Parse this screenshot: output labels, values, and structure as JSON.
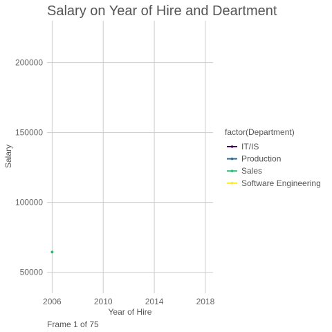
{
  "chart_data": {
    "type": "line",
    "title": "Salary on Year of Hire and Deartment",
    "xlabel": "Year of Hire",
    "ylabel": "Salary",
    "xlim": [
      2005.6,
      2018.6
    ],
    "ylim": [
      35000,
      230000
    ],
    "x_ticks": [
      2006,
      2010,
      2014,
      2018
    ],
    "y_ticks": [
      50000,
      100000,
      150000,
      200000
    ],
    "grid": true,
    "legend": {
      "title": "factor(Department)",
      "placement": "right",
      "entries": [
        {
          "name": "IT/IS",
          "color": "#440154"
        },
        {
          "name": "Production",
          "color": "#31688E"
        },
        {
          "name": "Sales",
          "color": "#35B779"
        },
        {
          "name": "Software Engineering",
          "color": "#FDE725"
        }
      ]
    },
    "series": [
      {
        "name": "IT/IS",
        "color": "#440154",
        "points": []
      },
      {
        "name": "Production",
        "color": "#31688E",
        "points": []
      },
      {
        "name": "Sales",
        "color": "#35B779",
        "points": [
          {
            "x": 2006,
            "y": 64500
          }
        ]
      },
      {
        "name": "Software Engineering",
        "color": "#FDE725",
        "points": []
      }
    ],
    "caption": "Frame 1 of 75"
  }
}
